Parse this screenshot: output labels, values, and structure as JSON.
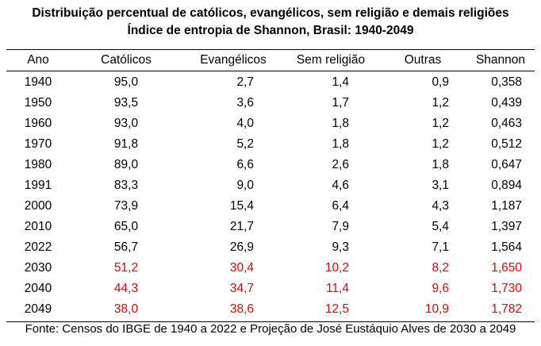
{
  "title": {
    "line1": "Distribuição percentual de católicos, evangélicos, sem religião e demais religiões",
    "line2": "Índice de entropia de Shannon, Brasil: 1940-2049"
  },
  "table": {
    "headers": [
      "Ano",
      "Católicos",
      "Evangélicos",
      "Sem religião",
      "Outras",
      "Shannon"
    ],
    "rows": [
      {
        "values": [
          "1940",
          "95,0",
          "2,7",
          "1,4",
          "0,9",
          "0,358"
        ],
        "projected": false
      },
      {
        "values": [
          "1950",
          "93,5",
          "3,6",
          "1,7",
          "1,2",
          "0,439"
        ],
        "projected": false
      },
      {
        "values": [
          "1960",
          "93,0",
          "4,0",
          "1,8",
          "1,2",
          "0,463"
        ],
        "projected": false
      },
      {
        "values": [
          "1970",
          "91,8",
          "5,2",
          "1,8",
          "1,2",
          "0,512"
        ],
        "projected": false
      },
      {
        "values": [
          "1980",
          "89,0",
          "6,6",
          "2,6",
          "1,8",
          "0,647"
        ],
        "projected": false
      },
      {
        "values": [
          "1991",
          "83,3",
          "9,0",
          "4,6",
          "3,1",
          "0,894"
        ],
        "projected": false
      },
      {
        "values": [
          "2000",
          "73,9",
          "15,4",
          "6,4",
          "4,3",
          "1,187"
        ],
        "projected": false
      },
      {
        "values": [
          "2010",
          "65,0",
          "21,7",
          "7,9",
          "5,4",
          "1,397"
        ],
        "projected": false
      },
      {
        "values": [
          "2022",
          "56,7",
          "26,9",
          "9,3",
          "7,1",
          "1,564"
        ],
        "projected": false
      },
      {
        "values": [
          "2030",
          "51,2",
          "30,4",
          "10,2",
          "8,2",
          "1,650"
        ],
        "projected": true
      },
      {
        "values": [
          "2040",
          "44,3",
          "34,7",
          "11,4",
          "9,6",
          "1,730"
        ],
        "projected": true
      },
      {
        "values": [
          "2049",
          "38,0",
          "38,6",
          "12,5",
          "10,9",
          "1,782"
        ],
        "projected": true
      }
    ]
  },
  "colors": {
    "projection_text": "#ee0000",
    "text": "#000000"
  },
  "source": "Fonte: Censos do IBGE de 1940 a 2022 e Projeção de José Eustáquio Alves de 2030 a 2049"
}
